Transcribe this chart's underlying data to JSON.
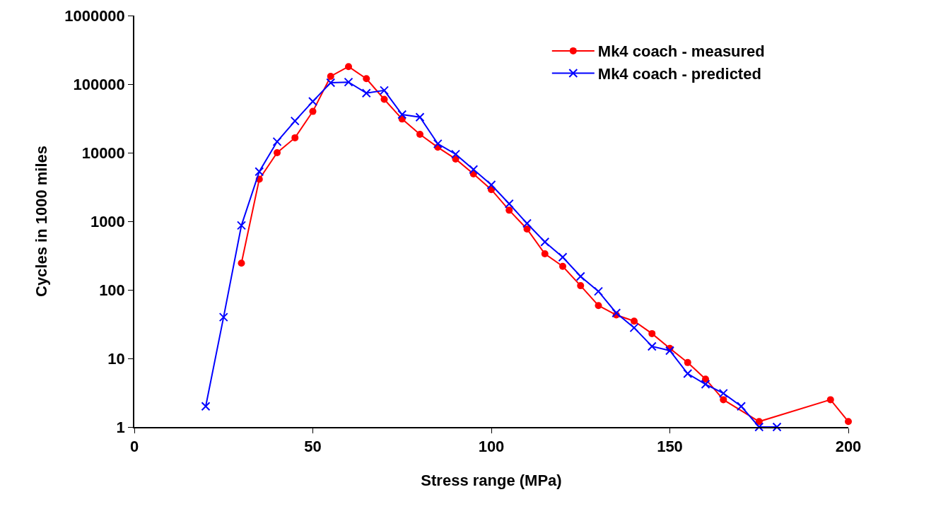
{
  "chart_data": {
    "type": "line",
    "xlabel": "Stress range (MPa)",
    "ylabel": "Cycles in 1000 miles",
    "log": "y",
    "grid": false,
    "legend": "top right",
    "xlim": [
      0,
      200
    ],
    "xticks": [
      0,
      50,
      100,
      150,
      200
    ],
    "ylim": [
      1,
      1000000
    ],
    "yticks": [
      1,
      10,
      100,
      1000,
      10000,
      100000,
      1000000
    ],
    "series": [
      {
        "name": "Mk4 coach - measured",
        "color": "#ff0000",
        "marker": "circle",
        "line_style": "solid",
        "x": [
          30,
          35,
          40,
          45,
          50,
          55,
          60,
          65,
          70,
          75,
          80,
          85,
          90,
          95,
          100,
          105,
          110,
          115,
          120,
          125,
          130,
          135,
          140,
          145,
          150,
          155,
          160,
          165,
          175,
          195,
          200
        ],
        "values": [
          245,
          4100,
          10000,
          16500,
          40000,
          130000,
          180000,
          120000,
          60000,
          31000,
          18500,
          12000,
          8100,
          4900,
          2900,
          1450,
          770,
          335,
          220,
          115,
          59,
          43,
          35,
          23,
          14,
          8.7,
          5,
          2.5,
          1.2,
          2.5,
          1.2
        ]
      },
      {
        "name": "Mk4 coach - predicted",
        "color": "#0000ff",
        "marker": "cross",
        "line_style": "solid",
        "x": [
          20,
          25,
          30,
          35,
          40,
          45,
          50,
          55,
          60,
          65,
          70,
          75,
          80,
          85,
          90,
          95,
          100,
          105,
          110,
          115,
          120,
          125,
          130,
          135,
          140,
          145,
          150,
          155,
          160,
          165,
          170,
          175,
          180
        ],
        "values": [
          2,
          40,
          870,
          5300,
          14500,
          29000,
          56000,
          105000,
          107000,
          74000,
          81000,
          36000,
          33000,
          13500,
          9500,
          5700,
          3400,
          1800,
          930,
          500,
          300,
          157,
          95,
          46,
          28,
          15,
          13,
          6,
          4.2,
          3.1,
          2,
          1,
          1
        ]
      }
    ]
  }
}
